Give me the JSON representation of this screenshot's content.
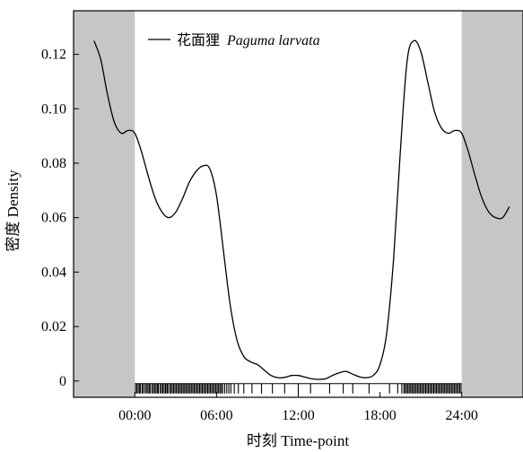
{
  "chart_data": {
    "type": "line",
    "title": "",
    "xlabel": "时刻 Time-point",
    "ylabel": "密度 Density",
    "xlim": [
      -4.5,
      28.5
    ],
    "ylim": [
      -0.006,
      0.136
    ],
    "x_ticks": [
      0,
      6,
      12,
      18,
      24
    ],
    "x_tick_labels": [
      "00:00",
      "06:00",
      "12:00",
      "18:00",
      "24:00"
    ],
    "y_ticks": [
      0,
      0.02,
      0.04,
      0.06,
      0.08,
      0.1,
      0.12
    ],
    "y_tick_labels": [
      "0",
      "0.02",
      "0.04",
      "0.06",
      "0.08",
      "0.10",
      "0.12"
    ],
    "shaded_regions": [
      [
        -4.5,
        0
      ],
      [
        24,
        28.5
      ]
    ],
    "shade_color": "#c5c6c8",
    "line_color": "#000000",
    "legend": {
      "position": "top-left",
      "label_cn": "花面狸",
      "label_latin": "Paguma larvata"
    },
    "series": [
      {
        "name": "花面狸 Paguma larvata",
        "x": [
          -3.0,
          -2.5,
          -2.0,
          -1.5,
          -1.0,
          -0.5,
          0.0,
          0.5,
          1.0,
          1.5,
          2.0,
          2.5,
          3.0,
          3.5,
          4.0,
          4.5,
          5.0,
          5.5,
          6.0,
          6.5,
          7.0,
          7.5,
          8.0,
          8.5,
          9.0,
          9.5,
          10.0,
          10.5,
          11.0,
          11.5,
          12.0,
          12.5,
          13.0,
          13.5,
          14.0,
          14.5,
          15.0,
          15.5,
          16.0,
          16.5,
          17.0,
          17.5,
          18.0,
          18.5,
          19.0,
          19.5,
          20.0,
          20.5,
          21.0,
          21.5,
          22.0,
          22.5,
          23.0,
          23.5,
          24.0,
          24.5,
          25.0,
          25.5,
          26.0,
          26.5,
          27.0,
          27.5
        ],
        "y": [
          0.125,
          0.118,
          0.105,
          0.095,
          0.091,
          0.092,
          0.091,
          0.084,
          0.075,
          0.067,
          0.062,
          0.06,
          0.062,
          0.067,
          0.073,
          0.077,
          0.079,
          0.078,
          0.068,
          0.048,
          0.028,
          0.015,
          0.009,
          0.007,
          0.006,
          0.004,
          0.002,
          0.0012,
          0.0013,
          0.002,
          0.002,
          0.0014,
          0.0008,
          0.0006,
          0.0008,
          0.002,
          0.003,
          0.0035,
          0.0025,
          0.0015,
          0.0012,
          0.002,
          0.006,
          0.018,
          0.045,
          0.085,
          0.118,
          0.125,
          0.121,
          0.11,
          0.099,
          0.093,
          0.091,
          0.092,
          0.091,
          0.084,
          0.075,
          0.067,
          0.062,
          0.06,
          0.06,
          0.064
        ]
      }
    ],
    "rug_times": [
      0.05,
      0.15,
      0.25,
      0.35,
      0.42,
      0.55,
      0.62,
      0.75,
      0.85,
      0.95,
      1.05,
      1.12,
      1.25,
      1.35,
      1.45,
      1.55,
      1.65,
      1.72,
      1.85,
      1.95,
      2.05,
      2.15,
      2.25,
      2.35,
      2.42,
      2.55,
      2.65,
      2.75,
      2.85,
      2.95,
      3.05,
      3.15,
      3.25,
      3.35,
      3.45,
      3.55,
      3.65,
      3.75,
      3.85,
      3.95,
      4.05,
      4.15,
      4.25,
      4.35,
      4.45,
      4.55,
      4.65,
      4.75,
      4.85,
      4.95,
      5.05,
      5.15,
      5.25,
      5.35,
      5.45,
      5.55,
      5.65,
      5.75,
      5.85,
      5.95,
      6.05,
      6.15,
      6.25,
      6.35,
      6.45,
      6.6,
      6.75,
      6.9,
      7.05,
      7.3,
      7.6,
      8.0,
      8.6,
      9.3,
      10.1,
      11.0,
      12.0,
      12.9,
      14.3,
      15.3,
      16.0,
      17.2,
      18.7,
      19.3,
      19.6,
      19.75,
      19.85,
      19.95,
      20.05,
      20.15,
      20.25,
      20.35,
      20.45,
      20.55,
      20.65,
      20.75,
      20.85,
      20.95,
      21.05,
      21.15,
      21.25,
      21.35,
      21.45,
      21.55,
      21.65,
      21.75,
      21.85,
      21.95,
      22.05,
      22.15,
      22.25,
      22.35,
      22.45,
      22.55,
      22.65,
      22.75,
      22.85,
      22.95,
      23.05,
      23.15,
      23.25,
      23.35,
      23.45,
      23.55,
      23.65,
      23.75,
      23.85,
      23.95
    ]
  }
}
